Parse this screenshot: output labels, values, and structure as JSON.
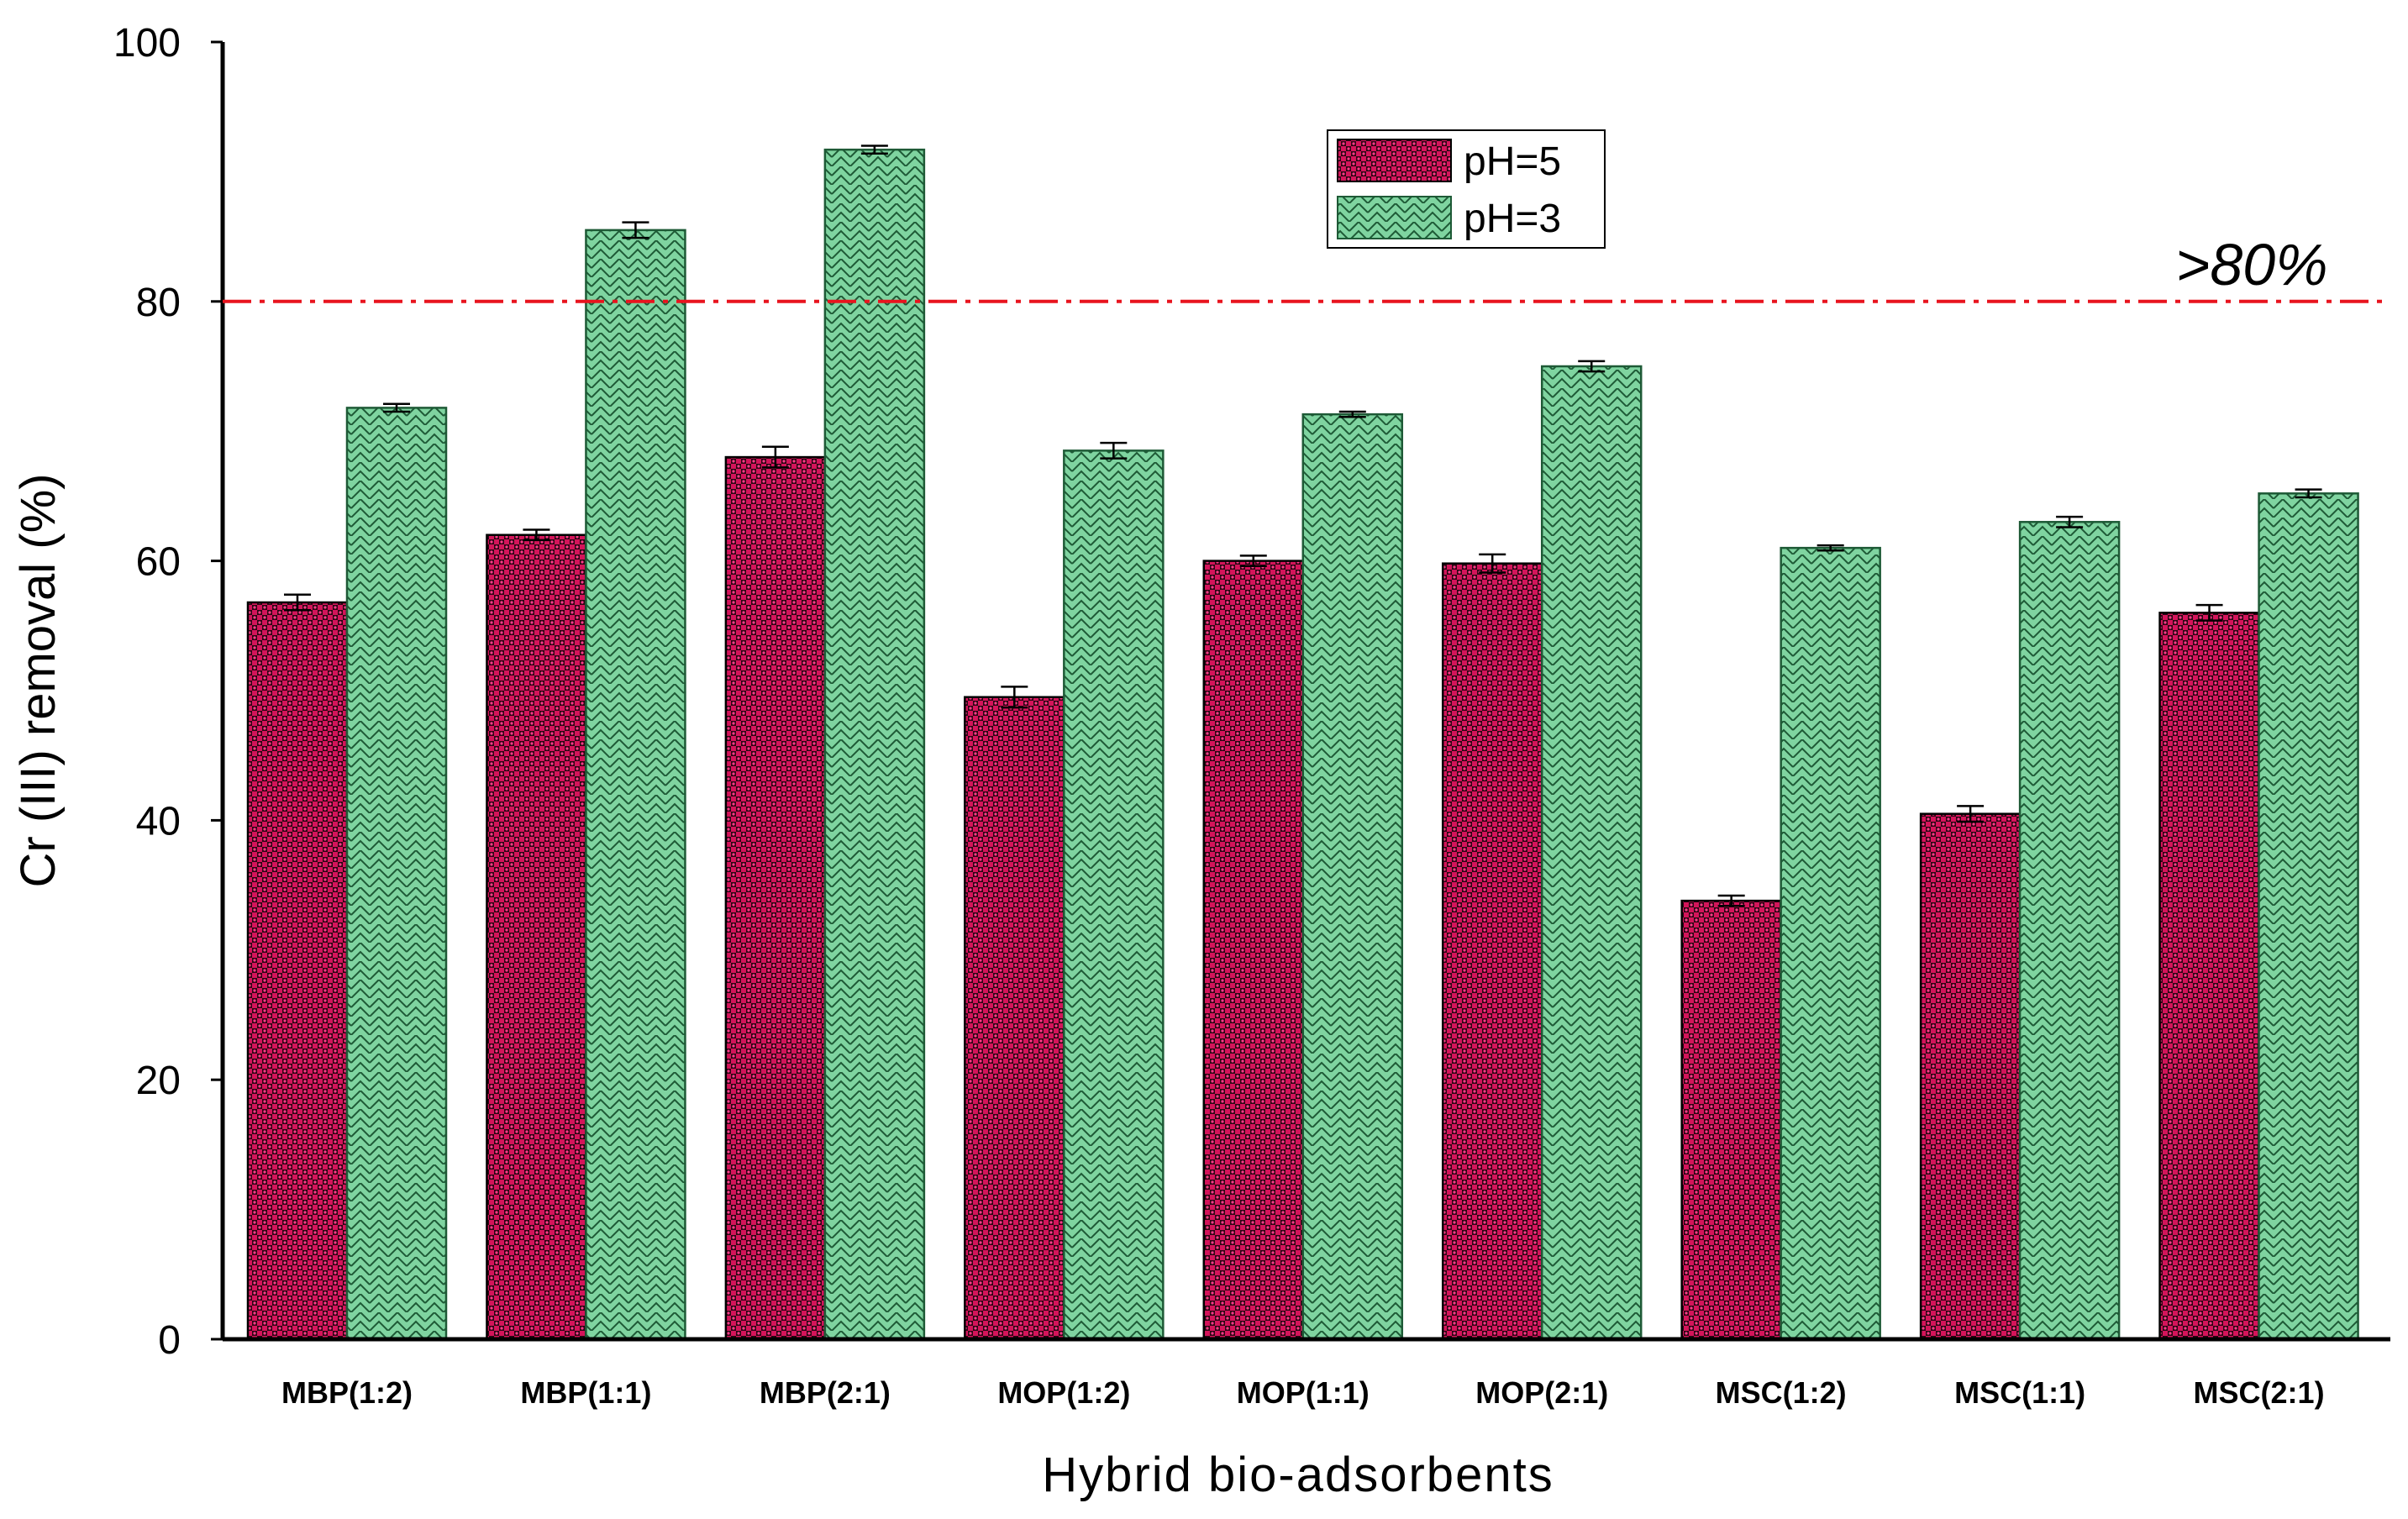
{
  "chart_data": {
    "type": "bar",
    "title": "",
    "xlabel": "Hybrid bio-adsorbents",
    "ylabel": "Cr (III) removal (%)",
    "ylim": [
      0,
      100
    ],
    "yticks": [
      0,
      20,
      40,
      60,
      80,
      100
    ],
    "categories": [
      "MBP(1:2)",
      "MBP(1:1)",
      "MBP(2:1)",
      "MOP(1:2)",
      "MOP(1:1)",
      "MOP(2:1)",
      "MSC(1:2)",
      "MSC(1:1)",
      "MSC(2:1)"
    ],
    "series": [
      {
        "name": "pH=5",
        "color": "#d4145a",
        "values": [
          56.8,
          62.0,
          68.0,
          49.5,
          60.0,
          59.8,
          33.8,
          40.5,
          56.0
        ],
        "errors": [
          0.6,
          0.4,
          0.8,
          0.8,
          0.4,
          0.7,
          0.4,
          0.6,
          0.6
        ]
      },
      {
        "name": "pH=3",
        "color": "#7fd4a0",
        "values": [
          71.8,
          85.5,
          91.7,
          68.5,
          71.3,
          75.0,
          61.0,
          63.0,
          65.2
        ],
        "errors": [
          0.3,
          0.6,
          0.3,
          0.6,
          0.2,
          0.4,
          0.2,
          0.4,
          0.3
        ]
      }
    ],
    "legend": {
      "position": "top-center"
    },
    "reference_line": {
      "value": 80,
      "label": ">80%",
      "color": "#e8141e"
    }
  }
}
